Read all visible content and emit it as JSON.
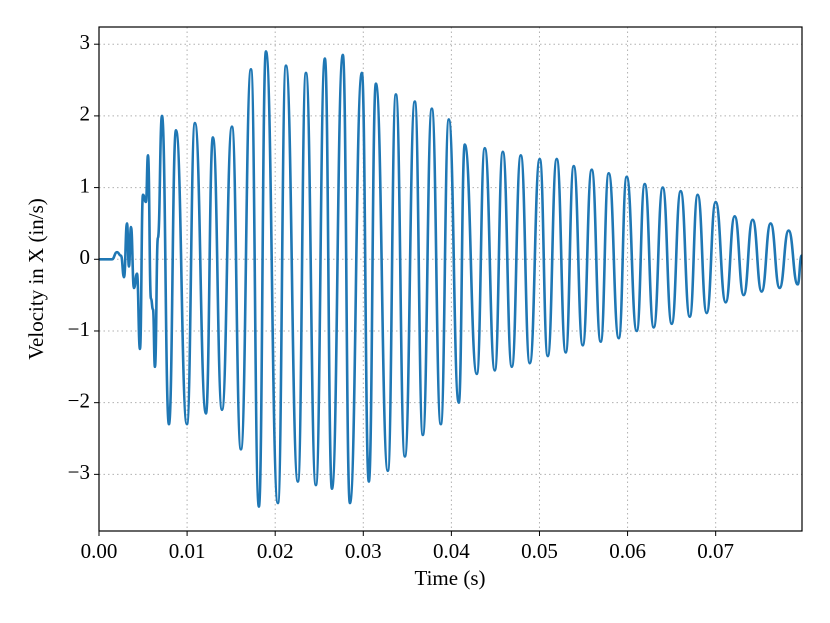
{
  "chart_data": {
    "type": "line",
    "xlabel": "Time (s)",
    "ylabel": "Velocity in X (in/s)",
    "xlim": [
      0,
      0.0798
    ],
    "ylim": [
      -3.79,
      3.24
    ],
    "xticks": [
      {
        "value": 0,
        "label": "0.00"
      },
      0.01,
      0.02,
      0.03,
      0.04,
      0.05,
      0.06,
      0.07
    ],
    "yticks": [
      {
        "value": -3,
        "label": "−3"
      },
      {
        "value": -2,
        "label": "−2"
      },
      {
        "value": -1,
        "label": "−1"
      },
      0,
      1,
      2,
      3
    ],
    "grid": true,
    "series": [
      {
        "color": "#1f77b4",
        "x": [
          0,
          0.00147,
          0.00204,
          0.0025,
          0.00284,
          0.00318,
          0.0034,
          0.00363,
          0.00397,
          0.00431,
          0.00465,
          0.00499,
          0.00533,
          0.00556,
          0.0059,
          0.00613,
          0.00635,
          0.00669,
          0.00715,
          0.00794,
          0.00874,
          0.00998,
          0.01089,
          0.01214,
          0.01293,
          0.01396,
          0.01509,
          0.01611,
          0.01725,
          0.01815,
          0.01895,
          0.02031,
          0.02122,
          0.02258,
          0.02349,
          0.02462,
          0.02564,
          0.02644,
          0.02768,
          0.02848,
          0.02984,
          0.03063,
          0.03143,
          0.03279,
          0.0337,
          0.03472,
          0.03585,
          0.03676,
          0.03778,
          0.0388,
          0.03971,
          0.04084,
          0.04152,
          0.04289,
          0.04379,
          0.04493,
          0.04584,
          0.04686,
          0.04788,
          0.0489,
          0.05003,
          0.05094,
          0.05196,
          0.05298,
          0.05389,
          0.05491,
          0.05593,
          0.05695,
          0.05786,
          0.059,
          0.0599,
          0.06104,
          0.06195,
          0.06297,
          0.06399,
          0.06501,
          0.06603,
          0.06706,
          0.06796,
          0.06898,
          0.07,
          0.07114,
          0.07216,
          0.07318,
          0.0742,
          0.07522,
          0.07624,
          0.07726,
          0.07828,
          0.07931,
          0.07976
        ],
        "values": [
          0,
          0,
          0.1,
          0.05,
          -0.25,
          0.5,
          -0.1,
          0.45,
          -0.4,
          -0.2,
          -1.25,
          0.9,
          0.8,
          1.45,
          -0.55,
          -0.7,
          -1.5,
          0.3,
          2.0,
          -2.3,
          1.8,
          -2.3,
          1.9,
          -2.15,
          1.7,
          -2.1,
          1.85,
          -2.65,
          2.65,
          -3.45,
          2.9,
          -3.4,
          2.7,
          -3.1,
          2.6,
          -3.15,
          2.8,
          -3.2,
          2.85,
          -3.4,
          2.6,
          -3.1,
          2.45,
          -2.95,
          2.3,
          -2.75,
          2.2,
          -2.45,
          2.1,
          -2.3,
          1.95,
          -2.0,
          1.6,
          -1.6,
          1.55,
          -1.55,
          1.5,
          -1.5,
          1.45,
          -1.45,
          1.4,
          -1.35,
          1.4,
          -1.3,
          1.3,
          -1.2,
          1.25,
          -1.15,
          1.2,
          -1.1,
          1.15,
          -1.0,
          1.05,
          -0.95,
          1.0,
          -0.9,
          0.95,
          -0.8,
          0.9,
          -0.75,
          0.8,
          -0.6,
          0.6,
          -0.5,
          0.55,
          -0.45,
          0.5,
          -0.4,
          0.4,
          -0.35,
          0.05
        ]
      }
    ]
  }
}
